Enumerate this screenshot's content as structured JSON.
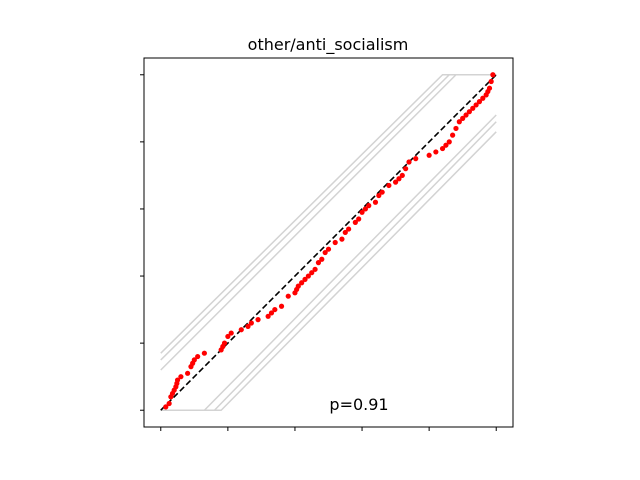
{
  "chart_data": {
    "type": "scatter",
    "title": "other/anti_socialism",
    "xlabel": "",
    "ylabel": "",
    "xlim": [
      -0.05,
      1.05
    ],
    "ylim": [
      -0.05,
      1.05
    ],
    "tick_labels_visible": false,
    "grid": false,
    "annotation": "p=0.91",
    "colors": {
      "points": "#ff0000",
      "reference_line": "#000000",
      "envelope": "#d3d3d3"
    },
    "reference_line": {
      "x": [
        0,
        1
      ],
      "y": [
        0,
        1
      ],
      "style": "dashed"
    },
    "envelopes": [
      {
        "x": [
          0,
          0.84,
          1
        ],
        "y": [
          0.17,
          1,
          1
        ]
      },
      {
        "x": [
          0,
          0.86,
          1
        ],
        "y": [
          0.15,
          1,
          1
        ]
      },
      {
        "x": [
          0,
          0.88,
          1
        ],
        "y": [
          0.12,
          1,
          1
        ]
      },
      {
        "x": [
          0,
          0.13,
          1
        ],
        "y": [
          0,
          0,
          0.88
        ]
      },
      {
        "x": [
          0,
          0.16,
          1
        ],
        "y": [
          0,
          0,
          0.86
        ]
      },
      {
        "x": [
          0,
          0.18,
          1
        ],
        "y": [
          0,
          0,
          0.83
        ]
      }
    ],
    "points": {
      "x": [
        0.015,
        0.025,
        0.03,
        0.035,
        0.04,
        0.045,
        0.048,
        0.05,
        0.06,
        0.08,
        0.09,
        0.095,
        0.1,
        0.11,
        0.13,
        0.18,
        0.185,
        0.19,
        0.2,
        0.21,
        0.24,
        0.26,
        0.27,
        0.29,
        0.32,
        0.33,
        0.34,
        0.36,
        0.38,
        0.4,
        0.405,
        0.41,
        0.42,
        0.43,
        0.44,
        0.45,
        0.46,
        0.47,
        0.48,
        0.49,
        0.5,
        0.52,
        0.54,
        0.55,
        0.56,
        0.58,
        0.59,
        0.6,
        0.61,
        0.62,
        0.64,
        0.65,
        0.66,
        0.68,
        0.7,
        0.71,
        0.72,
        0.73,
        0.74,
        0.76,
        0.8,
        0.82,
        0.84,
        0.85,
        0.86,
        0.87,
        0.88,
        0.89,
        0.9,
        0.91,
        0.92,
        0.93,
        0.94,
        0.95,
        0.96,
        0.97,
        0.975,
        0.98,
        0.985,
        0.99
      ],
      "y": [
        0.01,
        0.02,
        0.04,
        0.05,
        0.06,
        0.07,
        0.08,
        0.09,
        0.1,
        0.11,
        0.13,
        0.14,
        0.15,
        0.16,
        0.17,
        0.18,
        0.19,
        0.2,
        0.22,
        0.23,
        0.24,
        0.25,
        0.26,
        0.27,
        0.28,
        0.29,
        0.3,
        0.31,
        0.34,
        0.35,
        0.36,
        0.37,
        0.38,
        0.39,
        0.4,
        0.41,
        0.42,
        0.44,
        0.45,
        0.47,
        0.48,
        0.5,
        0.51,
        0.53,
        0.54,
        0.56,
        0.57,
        0.59,
        0.6,
        0.61,
        0.62,
        0.64,
        0.65,
        0.67,
        0.68,
        0.69,
        0.7,
        0.72,
        0.74,
        0.75,
        0.76,
        0.77,
        0.78,
        0.79,
        0.8,
        0.82,
        0.84,
        0.86,
        0.87,
        0.88,
        0.89,
        0.9,
        0.91,
        0.92,
        0.93,
        0.94,
        0.95,
        0.96,
        0.98,
        1.0
      ]
    }
  }
}
